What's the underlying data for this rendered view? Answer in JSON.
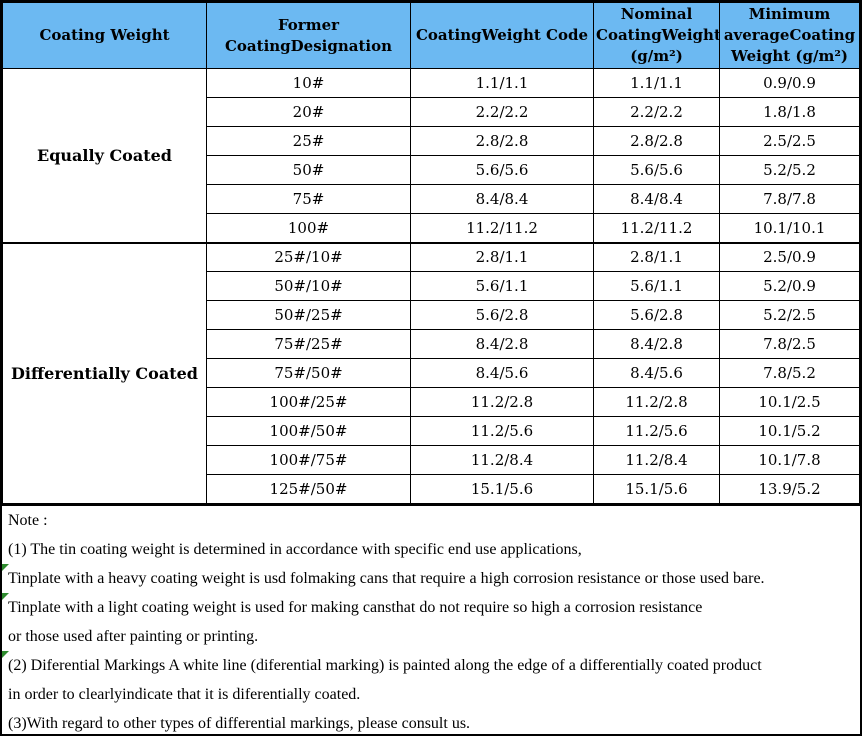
{
  "colors": {
    "header_bg": "#6CB9F2",
    "border": "#000000",
    "flag_green": "#2E8B2E"
  },
  "table": {
    "headers": [
      "Coating Weight",
      "Former\nCoatingDesignation",
      "CoatingWeight Code",
      "Nominal\nCoatingWeight\n(g/m²)",
      "Minimum\naverageCoating\nWeight (g/m²)"
    ],
    "sections": [
      {
        "label": "Equally Coated",
        "rows": [
          {
            "designation": "10#",
            "code": "1.1/1.1",
            "nominal": "1.1/1.1",
            "minimum": "0.9/0.9"
          },
          {
            "designation": "20#",
            "code": "2.2/2.2",
            "nominal": "2.2/2.2",
            "minimum": "1.8/1.8"
          },
          {
            "designation": "25#",
            "code": "2.8/2.8",
            "nominal": "2.8/2.8",
            "minimum": "2.5/2.5"
          },
          {
            "designation": "50#",
            "code": "5.6/5.6",
            "nominal": "5.6/5.6",
            "minimum": "5.2/5.2"
          },
          {
            "designation": "75#",
            "code": "8.4/8.4",
            "nominal": "8.4/8.4",
            "minimum": "7.8/7.8"
          },
          {
            "designation": "100#",
            "code": "11.2/11.2",
            "nominal": "11.2/11.2",
            "minimum": "10.1/10.1"
          }
        ]
      },
      {
        "label": "Differentially Coated",
        "rows": [
          {
            "designation": "25#/10#",
            "code": "2.8/1.1",
            "nominal": "2.8/1.1",
            "minimum": "2.5/0.9"
          },
          {
            "designation": "50#/10#",
            "code": "5.6/1.1",
            "nominal": "5.6/1.1",
            "minimum": "5.2/0.9"
          },
          {
            "designation": "50#/25#",
            "code": "5.6/2.8",
            "nominal": "5.6/2.8",
            "minimum": "5.2/2.5"
          },
          {
            "designation": "75#/25#",
            "code": "8.4/2.8",
            "nominal": "8.4/2.8",
            "minimum": "7.8/2.5"
          },
          {
            "designation": "75#/50#",
            "code": "8.4/5.6",
            "nominal": "8.4/5.6",
            "minimum": "7.8/5.2"
          },
          {
            "designation": "100#/25#",
            "code": "11.2/2.8",
            "nominal": "11.2/2.8",
            "minimum": "10.1/2.5"
          },
          {
            "designation": "100#/50#",
            "code": "11.2/5.6",
            "nominal": "11.2/5.6",
            "minimum": "10.1/5.2"
          },
          {
            "designation": "100#/75#",
            "code": "11.2/8.4",
            "nominal": "11.2/8.4",
            "minimum": "10.1/7.8"
          },
          {
            "designation": "125#/50#",
            "code": "15.1/5.6",
            "nominal": "15.1/5.6",
            "minimum": "13.9/5.2"
          }
        ]
      }
    ]
  },
  "notes": {
    "lines": [
      {
        "text": "Note :",
        "flag": false
      },
      {
        "text": "(1) The tin coating weight is determined in accordance with specific end use applications,",
        "flag": false
      },
      {
        "text": "Tinplate with a heavy coating weight is usd folmaking cans that require a high corrosion resistance or those used bare.",
        "flag": true
      },
      {
        "text": "Tinplate with a light coating weight is used for making cansthat do not require so high a corrosion resistance",
        "flag": true
      },
      {
        "text": "or those used after painting or printing.",
        "flag": false
      },
      {
        "text": "(2) Diferential Markings A white line (diferential marking) is painted along the edge of a differentially coated product",
        "flag": true
      },
      {
        "text": "in order to clearlyindicate that it is diferentially coated.",
        "flag": false
      },
      {
        "text": "(3)With regard to other types of differential markings, please consult us.",
        "flag": false
      }
    ]
  }
}
